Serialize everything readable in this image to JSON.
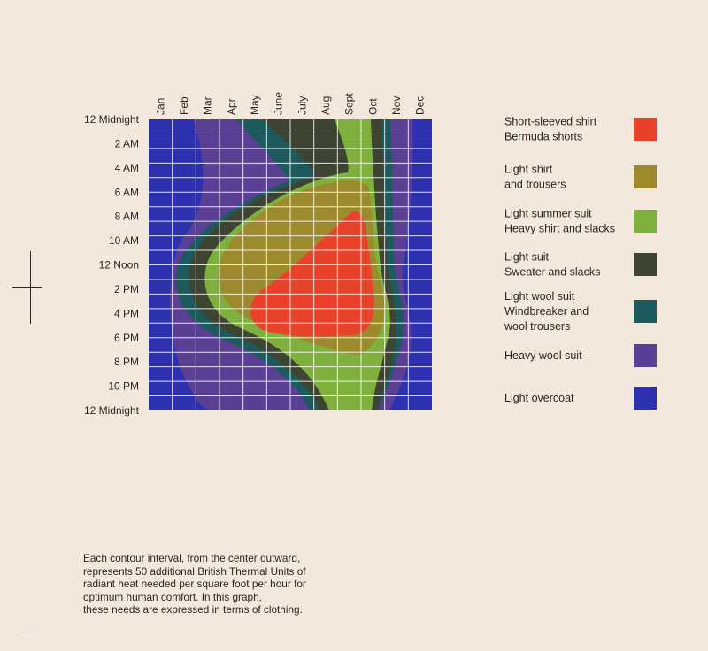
{
  "chart_data": {
    "type": "heatmap",
    "x_tick_labels": [
      "Jan",
      "Feb",
      "Mar",
      "Apr",
      "May",
      "June",
      "July",
      "Aug",
      "Sept",
      "Oct",
      "Nov",
      "Dec"
    ],
    "y_tick_labels": [
      "12 Midnight",
      "2 AM",
      "4 AM",
      "6 AM",
      "8 AM",
      "10 AM",
      "12 Noon",
      "2 PM",
      "4 PM",
      "6 PM",
      "8 PM",
      "10 PM",
      "12 Midnight"
    ],
    "levels": [
      {
        "rank": 7,
        "lines": [
          "Short-sleeved shirt",
          "Bermuda shorts"
        ],
        "color": "#e8432a"
      },
      {
        "rank": 6,
        "lines": [
          "Light shirt",
          "and trousers"
        ],
        "color": "#9c8a2c"
      },
      {
        "rank": 5,
        "lines": [
          "Light summer suit",
          "Heavy shirt and slacks"
        ],
        "color": "#7fb03e"
      },
      {
        "rank": 4,
        "lines": [
          "Light suit",
          "Sweater and slacks"
        ],
        "color": "#3d4432"
      },
      {
        "rank": 3,
        "lines": [
          "Light wool suit",
          "Windbreaker and",
          "wool trousers"
        ],
        "color": "#1d5a5e"
      },
      {
        "rank": 2,
        "lines": [
          "Heavy wool suit"
        ],
        "color": "#5a3f95"
      },
      {
        "rank": 1,
        "lines": [
          "Light overcoat"
        ],
        "color": "#2d31b0"
      }
    ],
    "grid": true,
    "legend_position": "right",
    "caption": [
      "Each contour interval, from the center outward,",
      "represents 50 additional British Thermal Units of",
      "radiant heat needed per square foot per hour for",
      "optimum human comfort. In this graph,",
      "these needs are expressed in terms of clothing."
    ]
  }
}
